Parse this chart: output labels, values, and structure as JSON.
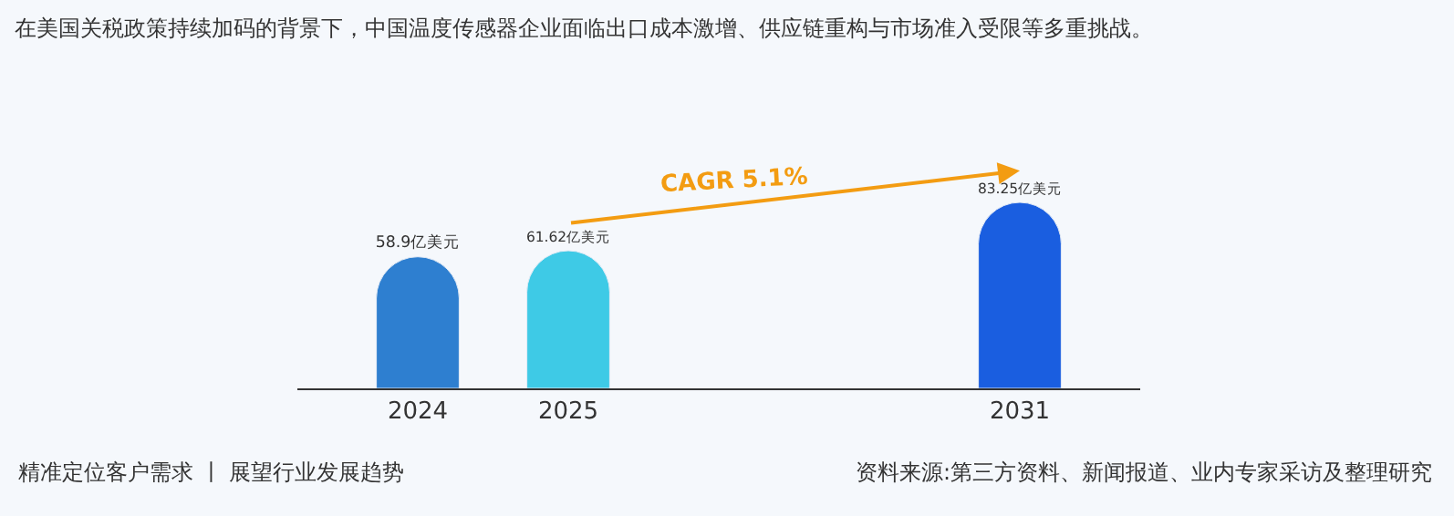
{
  "chart_data": {
    "type": "bar",
    "title": "在美国关税政策持续加码的背景下，中国温度传感器企业面临出口成本激增、供应链重构与市场准入受限等多重挑战。",
    "categories": [
      "2024",
      "2025",
      null,
      null,
      "2031"
    ],
    "values": [
      58.9,
      61.62,
      null,
      null,
      83.25
    ],
    "value_labels": [
      "58.9亿美元",
      "61.62亿美元",
      null,
      null,
      "83.25亿美元"
    ],
    "colors": [
      "#2e7fd0",
      "#3ecae6",
      "#3ecae6",
      "#3ecae6",
      "#1a5ee0"
    ],
    "tick_labels": "x",
    "grid": false,
    "legend": false,
    "annotations": [
      "CAGR 5.1%",
      "精准定位客户需求 丨 展望行业发展趋势",
      "资料来源:第三方资料、新闻报道、业内专家采访及整理研究"
    ]
  }
}
